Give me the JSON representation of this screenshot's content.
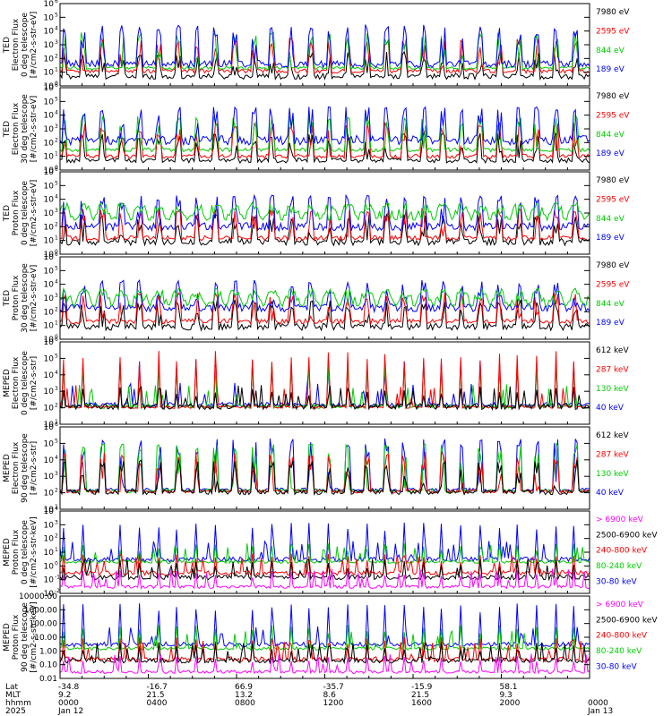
{
  "chart_data": {
    "type": "line",
    "panels": [
      {
        "ylabel": [
          "TED",
          "Electron Flux",
          "0 deg telescope",
          "[#/cm2-s-str-eV]"
        ],
        "scale": "log",
        "ylim": [
          1,
          1000000
        ],
        "ticks": [
          {
            "v": 1,
            "label": "10"
          },
          {
            "v": 10,
            "label": "10"
          },
          {
            "v": 100,
            "label": "10"
          },
          {
            "v": 1000,
            "label": "10"
          },
          {
            "v": 10000,
            "label": "10"
          },
          {
            "v": 100000,
            "label": "10"
          },
          {
            "v": 1000000,
            "label": "10"
          }
        ],
        "tick_exps": [
          "0",
          "1",
          "2",
          "3",
          "4",
          "5",
          "6"
        ],
        "series": [
          {
            "name": "7980 eV",
            "color": "#000000",
            "base": 5,
            "peak": 300,
            "noise": 1.6,
            "pattern": "burst"
          },
          {
            "name": "2595 eV",
            "color": "#ff0000",
            "base": 12,
            "peak": 3000,
            "noise": 1.4,
            "pattern": "burst"
          },
          {
            "name": "844 eV",
            "color": "#00cc00",
            "base": 20,
            "peak": 8000,
            "noise": 1.3,
            "pattern": "burst"
          },
          {
            "name": "189 eV",
            "color": "#0000ff",
            "base": 40,
            "peak": 30000,
            "noise": 1.8,
            "pattern": "burst"
          }
        ]
      },
      {
        "ylabel": [
          "TED",
          "Electron Flux",
          "30 deg telescope",
          "[#/cm2-s-str-eV]"
        ],
        "scale": "log",
        "ylim": [
          1,
          1000000
        ],
        "ticks": [
          {
            "v": 1,
            "label": "10"
          },
          {
            "v": 10,
            "label": "10"
          },
          {
            "v": 100,
            "label": "10"
          },
          {
            "v": 1000,
            "label": "10"
          },
          {
            "v": 10000,
            "label": "10"
          },
          {
            "v": 100000,
            "label": "10"
          },
          {
            "v": 1000000,
            "label": "10"
          }
        ],
        "tick_exps": [
          "0",
          "1",
          "2",
          "3",
          "4",
          "5",
          "6"
        ],
        "series": [
          {
            "name": "7980 eV",
            "color": "#000000",
            "base": 5,
            "peak": 500,
            "noise": 1.5,
            "pattern": "burst"
          },
          {
            "name": "2595 eV",
            "color": "#ff0000",
            "base": 10,
            "peak": 3000,
            "noise": 1.4,
            "pattern": "burst"
          },
          {
            "name": "844 eV",
            "color": "#00cc00",
            "base": 30,
            "peak": 10000,
            "noise": 1.4,
            "pattern": "burst"
          },
          {
            "name": "189 eV",
            "color": "#0000ff",
            "base": 150,
            "peak": 40000,
            "noise": 2.2,
            "pattern": "burst"
          }
        ]
      },
      {
        "ylabel": [
          "TED",
          "Proton Flux",
          "0 deg telescope",
          "[#/cm2-s-str-eV]"
        ],
        "scale": "log",
        "ylim": [
          1,
          1000000
        ],
        "ticks": [
          {
            "v": 1,
            "label": "10"
          },
          {
            "v": 10,
            "label": "10"
          },
          {
            "v": 100,
            "label": "10"
          },
          {
            "v": 1000,
            "label": "10"
          },
          {
            "v": 10000,
            "label": "10"
          },
          {
            "v": 100000,
            "label": "10"
          },
          {
            "v": 1000000,
            "label": "10"
          }
        ],
        "tick_exps": [
          "0",
          "1",
          "2",
          "3",
          "4",
          "5",
          "6"
        ],
        "series": [
          {
            "name": "7980 eV",
            "color": "#000000",
            "base": 8,
            "peak": 800,
            "noise": 1.8,
            "pattern": "burst"
          },
          {
            "name": "2595 eV",
            "color": "#ff0000",
            "base": 15,
            "peak": 2000,
            "noise": 1.5,
            "pattern": "burst"
          },
          {
            "name": "189 eV",
            "color": "#0000ff",
            "base": 100,
            "peak": 20000,
            "noise": 2.0,
            "pattern": "burst"
          },
          {
            "name": "844 eV",
            "color": "#00cc00",
            "base": 300,
            "peak": 6000,
            "noise": 1.8,
            "pattern": "wave"
          }
        ]
      },
      {
        "ylabel": [
          "TED",
          "Proton Flux",
          "30 deg telescope",
          "[#/cm2-s-str-eV]"
        ],
        "scale": "log",
        "ylim": [
          1,
          1000000
        ],
        "ticks": [
          {
            "v": 1,
            "label": "10"
          },
          {
            "v": 10,
            "label": "10"
          },
          {
            "v": 100,
            "label": "10"
          },
          {
            "v": 1000,
            "label": "10"
          },
          {
            "v": 10000,
            "label": "10"
          },
          {
            "v": 100000,
            "label": "10"
          },
          {
            "v": 1000000,
            "label": "10"
          }
        ],
        "tick_exps": [
          "0",
          "1",
          "2",
          "3",
          "4",
          "5",
          "6"
        ],
        "series": [
          {
            "name": "7980 eV",
            "color": "#000000",
            "base": 8,
            "peak": 800,
            "noise": 1.8,
            "pattern": "burst"
          },
          {
            "name": "2595 eV",
            "color": "#ff0000",
            "base": 20,
            "peak": 2500,
            "noise": 1.5,
            "pattern": "burst"
          },
          {
            "name": "189 eV",
            "color": "#0000ff",
            "base": 200,
            "peak": 20000,
            "noise": 2.0,
            "pattern": "burst"
          },
          {
            "name": "844 eV",
            "color": "#00cc00",
            "base": 250,
            "peak": 5000,
            "noise": 1.8,
            "pattern": "wave"
          }
        ]
      },
      {
        "ylabel": [
          "MEPED",
          "Electron Flux",
          "0 deg telescope",
          "[#/cm2-s-str]"
        ],
        "scale": "log",
        "ylim": [
          10,
          1000000
        ],
        "ticks": [
          {
            "v": 10,
            "label": "10"
          },
          {
            "v": 100,
            "label": "10"
          },
          {
            "v": 1000,
            "label": "10"
          },
          {
            "v": 10000,
            "label": "10"
          },
          {
            "v": 100000,
            "label": "10"
          },
          {
            "v": 1000000,
            "label": "10"
          }
        ],
        "tick_exps": [
          "1",
          "2",
          "3",
          "4",
          "5",
          "6"
        ],
        "series": [
          {
            "name": "40 keV",
            "color": "#0000ff",
            "base": 150,
            "peak": 80000,
            "noise": 1.4,
            "pattern": "spike"
          },
          {
            "name": "130 keV",
            "color": "#00cc00",
            "base": 120,
            "peak": 60000,
            "noise": 1.3,
            "pattern": "spike"
          },
          {
            "name": "287 keV",
            "color": "#ff0000",
            "base": 110,
            "peak": 300000,
            "noise": 1.2,
            "pattern": "spike"
          },
          {
            "name": "612 keV",
            "color": "#000000",
            "base": 120,
            "peak": 2000,
            "noise": 1.5,
            "pattern": "spike"
          }
        ]
      },
      {
        "ylabel": [
          "MEPED",
          "Electron Flux",
          "90 deg telescope",
          "[#/cm2-s-str]"
        ],
        "scale": "log",
        "ylim": [
          10,
          1000000
        ],
        "ticks": [
          {
            "v": 10,
            "label": "10"
          },
          {
            "v": 100,
            "label": "10"
          },
          {
            "v": 1000,
            "label": "10"
          },
          {
            "v": 10000,
            "label": "10"
          },
          {
            "v": 100000,
            "label": "10"
          },
          {
            "v": 1000000,
            "label": "10"
          }
        ],
        "tick_exps": [
          "1",
          "2",
          "3",
          "4",
          "5",
          "6"
        ],
        "series": [
          {
            "name": "40 keV",
            "color": "#0000ff",
            "base": 150,
            "peak": 200000,
            "noise": 1.3,
            "pattern": "burst"
          },
          {
            "name": "130 keV",
            "color": "#00cc00",
            "base": 130,
            "peak": 100000,
            "noise": 1.3,
            "pattern": "burst"
          },
          {
            "name": "287 keV",
            "color": "#ff0000",
            "base": 120,
            "peak": 30000,
            "noise": 1.3,
            "pattern": "burst"
          },
          {
            "name": "612 keV",
            "color": "#000000",
            "base": 110,
            "peak": 10000,
            "noise": 1.4,
            "pattern": "burst"
          }
        ]
      },
      {
        "ylabel": [
          "MEPED",
          "Proton Flux",
          "0 deg telescope",
          "[#/cm2-s-str-keV]"
        ],
        "scale": "log",
        "ylim": [
          0.01,
          10000
        ],
        "ticks": [
          {
            "v": 0.01,
            "label": "10"
          },
          {
            "v": 0.1,
            "label": "10"
          },
          {
            "v": 1,
            "label": "10"
          },
          {
            "v": 10,
            "label": "10"
          },
          {
            "v": 100,
            "label": "10"
          },
          {
            "v": 1000,
            "label": "10"
          },
          {
            "v": 10000,
            "label": "10"
          }
        ],
        "tick_exps": [
          "-2",
          "-1",
          "0",
          "1",
          "2",
          "3",
          "4"
        ],
        "series": [
          {
            "name": "30-80 keV",
            "color": "#0000ff",
            "base": 3,
            "peak": 1500,
            "noise": 1.5,
            "pattern": "spike"
          },
          {
            "name": "80-240 keV",
            "color": "#00cc00",
            "base": 2,
            "peak": 50,
            "noise": 1.3,
            "pattern": "spike"
          },
          {
            "name": "240-800 keV",
            "color": "#ff0000",
            "base": 0.3,
            "peak": 8,
            "noise": 1.5,
            "pattern": "spike"
          },
          {
            "name": "2500-6900 keV",
            "color": "#000000",
            "base": 0.15,
            "peak": 3,
            "noise": 1.5,
            "pattern": "spike"
          },
          {
            "name": "> 6900 keV",
            "color": "#ff00ff",
            "base": 0.03,
            "peak": 0.5,
            "noise": 1.3,
            "pattern": "spike"
          }
        ]
      },
      {
        "ylabel": [
          "MEPED",
          "Proton Flux",
          "90 deg telescope",
          "[#/cm2-s-str-keV]"
        ],
        "scale": "log",
        "ylim": [
          0.01,
          10000
        ],
        "ticks": [
          {
            "v": 0.01,
            "label": "0.01"
          },
          {
            "v": 0.1,
            "label": "0.10"
          },
          {
            "v": 1,
            "label": "1.00"
          },
          {
            "v": 10,
            "label": "10.00"
          },
          {
            "v": 100,
            "label": "100.00"
          },
          {
            "v": 1000,
            "label": "1000.00"
          },
          {
            "v": 10000,
            "label": "10000.00"
          }
        ],
        "tick_exps": [],
        "series": [
          {
            "name": "30-80 keV",
            "color": "#0000ff",
            "base": 3,
            "peak": 3000,
            "noise": 1.5,
            "pattern": "spike"
          },
          {
            "name": "80-240 keV",
            "color": "#00cc00",
            "base": 1.5,
            "peak": 80,
            "noise": 1.3,
            "pattern": "spike"
          },
          {
            "name": "240-800 keV",
            "color": "#ff0000",
            "base": 0.25,
            "peak": 10,
            "noise": 1.5,
            "pattern": "spike"
          },
          {
            "name": "2500-6900 keV",
            "color": "#000000",
            "base": 0.2,
            "peak": 4,
            "noise": 1.5,
            "pattern": "spike"
          },
          {
            "name": "> 6900 keV",
            "color": "#ff00ff",
            "base": 0.03,
            "peak": 0.5,
            "noise": 1.3,
            "pattern": "spike"
          }
        ]
      }
    ],
    "x_axis": {
      "row_labels": [
        "Lat",
        "MLT",
        "hhmm",
        "2025"
      ],
      "ticks": [
        {
          "frac": 0.0,
          "lat": "-34.8",
          "mlt": "9.2",
          "hhmm": "0000",
          "date": "Jan 12"
        },
        {
          "frac": 0.1667,
          "lat": "-16.7",
          "mlt": "21.5",
          "hhmm": "0400",
          "date": ""
        },
        {
          "frac": 0.3333,
          "lat": "66.9",
          "mlt": "13.2",
          "hhmm": "0800",
          "date": ""
        },
        {
          "frac": 0.5,
          "lat": "-35.7",
          "mlt": "8.6",
          "hhmm": "1200",
          "date": ""
        },
        {
          "frac": 0.6667,
          "lat": "-15.9",
          "mlt": "21.5",
          "hhmm": "1600",
          "date": ""
        },
        {
          "frac": 0.8333,
          "lat": "58.1",
          "mlt": "9.3",
          "hhmm": "2000",
          "date": ""
        },
        {
          "frac": 1.0,
          "lat": "",
          "mlt": "",
          "hhmm": "0000",
          "date": "Jan 13"
        }
      ]
    },
    "orbit_count": 14
  }
}
